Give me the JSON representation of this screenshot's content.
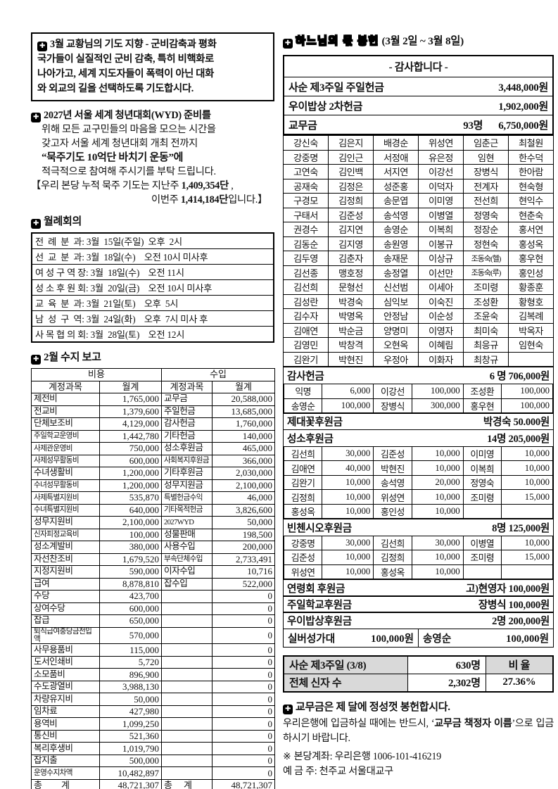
{
  "icons": {
    "section_marker": "✚",
    "reference_mark": "※"
  },
  "colors": {
    "text": "#111111",
    "border": "#000000",
    "stats_shade": "#d9d9d9",
    "background": "#ffffff"
  },
  "left": {
    "prayer_box": {
      "lines": [
        "3월 교황님의 기도 지향 - 군비감축과 평화",
        "국가들이 실질적인 군비 감축, 특히 비핵화로",
        "나아가고, 세계 지도자들이 폭력이 아닌 대화",
        "와 외교의 길을 선택하도록 기도합시다."
      ]
    },
    "wyd": {
      "title": "2027년 서울 세계 청년대회(WYD) 준비를",
      "lines": [
        "위해 모든 교구민들의 마음을 모으는 시간을",
        "갖고자 서울 세계 청년대회 개최 전까지"
      ],
      "slogan": "“묵주기도 10억단 바치기 운동”에",
      "closing": "적극적으로 참여해 주시기를 부탁 드립니다.",
      "rosary_line1": [
        {
          "t": "【우리 본당 누적 묵주 기도는 지난주 ",
          "b": false
        },
        {
          "t": "1,409,354단",
          "b": true
        },
        {
          "t": " ,",
          "b": false
        }
      ],
      "rosary_line2": [
        {
          "t": "이번주 ",
          "b": false
        },
        {
          "t": "1,414,184단",
          "b": true
        },
        {
          "t": "입니다.】",
          "b": false
        }
      ]
    },
    "meetings": {
      "title": "월례회의",
      "rows": [
        "전  례  분  과: 3월  15일(주일)  오후  2시",
        "선  교  분  과: 3월  18일(수)    오전 10시 미사후",
        "여 성 구 역 장: 3월  18일(수)    오전 11시",
        "성 소 후 원 회: 3월  20일(금)    오전 10시 미사후",
        "교  육  분  과: 3월  21일(토)    오후  5시",
        "남  성  구  역: 3월  24일(화)    오후  7시 미사 후",
        "사 목 협 의 회: 3월  28일(토)    오전 12시"
      ]
    },
    "finance": {
      "title": "2월 수지 보고",
      "expense_header": "비용",
      "income_header": "수입",
      "col_headers": [
        "계정과목",
        "월계",
        "계정과목",
        "월계"
      ],
      "rows": [
        [
          "제전비",
          "1,765,000",
          "교무금",
          "20,588,000"
        ],
        [
          "전교비",
          "1,379,600",
          "주일헌금",
          "13,685,000"
        ],
        [
          "단체보조비",
          "4,129,000",
          "감사헌금",
          "1,760,000"
        ],
        [
          "주일학교운영비",
          "1,442,780",
          "기타헌금",
          "140,000"
        ],
        [
          "사제관운영비",
          "750,000",
          "성소후원금",
          "465,000"
        ],
        [
          "사제성무활동비",
          "600,000",
          "사회복지후원금",
          "366,000"
        ],
        [
          "수녀생활비",
          "1,200,000",
          "기타후원금",
          "2,030,000"
        ],
        [
          "수녀성무활동비",
          "1,200,000",
          "성무지원금",
          "2,100,000"
        ],
        [
          "사제특별지원비",
          "535,870",
          "특별헌금수익",
          "46,000"
        ],
        [
          "수녀특별지원비",
          "640,000",
          "기타목적헌금",
          "3,826,600"
        ],
        [
          "성무지원비",
          "2,100,000",
          "2027WYD",
          "50,000"
        ],
        [
          "신자피정교육비",
          "100,000",
          "성물판매",
          "198,500"
        ],
        [
          "성소계발비",
          "380,000",
          "사용수입",
          "200,000"
        ],
        [
          "자선찬조비",
          "1,679,520",
          "부속단체수입",
          "2,733,491"
        ],
        [
          "지정지원비",
          "590,000",
          "이자수입",
          "10,716"
        ],
        [
          "급여",
          "8,878,810",
          "잡수입",
          "522,000"
        ],
        [
          "수당",
          "423,700",
          "",
          "0"
        ],
        [
          "상여수당",
          "600,000",
          "",
          "0"
        ],
        [
          "잡급",
          "650,000",
          "",
          "0"
        ],
        [
          "퇴직급여충당금전입액",
          "570,000",
          "",
          "0"
        ],
        [
          "사무용품비",
          "115,000",
          "",
          "0"
        ],
        [
          "도서인쇄비",
          "5,720",
          "",
          "0"
        ],
        [
          "소모품비",
          "896,900",
          "",
          "0"
        ],
        [
          "수도광열비",
          "3,988,130",
          "",
          "0"
        ],
        [
          "차량유지비",
          "50,000",
          "",
          "0"
        ],
        [
          "임차료",
          "427,980",
          "",
          "0"
        ],
        [
          "용역비",
          "1,099,250",
          "",
          "0"
        ],
        [
          "통신비",
          "521,360",
          "",
          "0"
        ],
        [
          "복리후생비",
          "1,019,790",
          "",
          "0"
        ],
        [
          "잡지출",
          "500,000",
          "",
          "0"
        ],
        [
          "운영수지차액",
          "10,482,897",
          "",
          "0"
        ]
      ],
      "total": [
        "총          계",
        "48,721,307",
        "총      계",
        "48,721,307"
      ]
    }
  },
  "right": {
    "title_outlined": "하느님의 몫 봉헌",
    "title_range": "(3월 2일 ~ 3월 8일)",
    "thanks": {
      "header": "- 감사합니다 -",
      "rows": [
        {
          "label": "사순 제3주일 주일헌금",
          "count": "",
          "amount": "3,448,000원"
        },
        {
          "label": "우이밥상 2차헌금",
          "count": "",
          "amount": "1,902,000원"
        },
        {
          "label": "교무금",
          "count": "93명",
          "amount": "6,750,000원"
        }
      ]
    },
    "names_grid": [
      [
        "강신숙",
        "김은지",
        "배경순",
        "위성연",
        "임춘근",
        "최철원"
      ],
      [
        "강중명",
        "김인근",
        "서정애",
        "유은정",
        "임현",
        "한수덕"
      ],
      [
        "고연숙",
        "김인백",
        "서지연",
        "이강선",
        "장병식",
        "한아람"
      ],
      [
        "공재숙",
        "김정은",
        "성준홍",
        "이덕자",
        "전계자",
        "현숙형"
      ],
      [
        "구경모",
        "김정희",
        "송문엽",
        "이미영",
        "전선희",
        "현익수"
      ],
      [
        "구태서",
        "김준성",
        "송석영",
        "이병열",
        "정영숙",
        "현춘숙"
      ],
      [
        "권경수",
        "김지연",
        "송영순",
        "이복희",
        "정장순",
        "홍서연"
      ],
      [
        "김동순",
        "김지영",
        "송원영",
        "이봉규",
        "정현숙",
        "홍성옥"
      ],
      [
        "김두영",
        "김춘자",
        "송재문",
        "이상규",
        "조동숙(헬)",
        "홍우현"
      ],
      [
        "김선종",
        "맹호정",
        "송정열",
        "이선만",
        "조동숙(루)",
        "홍인성"
      ],
      [
        "김선희",
        "문형선",
        "신선범",
        "이세아",
        "조미령",
        "황종훈"
      ],
      [
        "김성란",
        "박경숙",
        "심익보",
        "이숙진",
        "조성환",
        "황형호"
      ],
      [
        "김수자",
        "박명옥",
        "안정남",
        "이순성",
        "조윤숙",
        "김복례"
      ],
      [
        "김애연",
        "박순금",
        "양명미",
        "이영자",
        "최미숙",
        "박옥자"
      ],
      [
        "김영민",
        "박창격",
        "오현옥",
        "이혜림",
        "최응규",
        "임현숙"
      ],
      [
        "김완기",
        "박현진",
        "우정아",
        "이화자",
        "최창규",
        ""
      ]
    ],
    "sections": [
      {
        "label": "감사헌금",
        "summary": "6 명 706,000원",
        "donors": [
          [
            "익명",
            "6,000",
            "이강선",
            "100,000",
            "조성환",
            "100,000"
          ],
          [
            "송영순",
            "100,000",
            "장병식",
            "300,000",
            "홍우현",
            "100,000"
          ]
        ]
      },
      {
        "label": "제대꽃후원금",
        "summary": "박경숙 50.000원",
        "donors": []
      },
      {
        "label": "성소후원금",
        "summary": "14명 205,000원",
        "donors": [
          [
            "김선희",
            "30,000",
            "김준성",
            "10,000",
            "이미영",
            "10,000"
          ],
          [
            "김애연",
            "40,000",
            "박현진",
            "10,000",
            "이복희",
            "10,000"
          ],
          [
            "김완기",
            "10,000",
            "송석영",
            "20,000",
            "정영숙",
            "10,000"
          ],
          [
            "김정희",
            "10,000",
            "위성연",
            "10,000",
            "조미령",
            "15,000"
          ],
          [
            "홍성옥",
            "10,000",
            "홍인성",
            "10,000",
            "",
            ""
          ]
        ]
      },
      {
        "label": "빈첸시오후원금",
        "summary": "8명  125,000원",
        "donors": [
          [
            "강중명",
            "30,000",
            "김선희",
            "30,000",
            "이병열",
            "10,000"
          ],
          [
            "김준성",
            "10,000",
            "김정희",
            "10,000",
            "조미령",
            "15,000"
          ],
          [
            "위성연",
            "10,000",
            "홍성옥",
            "10,000",
            "",
            ""
          ]
        ]
      },
      {
        "label": "연령회 후원금",
        "summary": "고)현영자 100,000원",
        "donors": []
      },
      {
        "label": "주일학교후원금",
        "summary": "장병식 100,000원",
        "donors": []
      },
      {
        "label": "우이밥상후원금",
        "summary": "2명 200,000원",
        "donors": []
      }
    ],
    "silver_choir": {
      "left_label": "실버성가대",
      "left_amount": "100,000원",
      "right_label": "송영순",
      "right_amount": "100,000원"
    },
    "stats": {
      "rows": [
        [
          "사순 제3주일 (3/8)",
          "630명",
          "비  율"
        ],
        [
          "전체 신자 수",
          "2,302명",
          "27.36%"
        ]
      ]
    },
    "notes": {
      "heading": "교무금은 제 달에 정성껏 봉헌합시다.",
      "body": [
        {
          "t": "우리은행에 입금하실 때에는 반드시, ‘",
          "b": false
        },
        {
          "t": "교무금 책정자 이름",
          "b": true
        },
        {
          "t": "’으로 입금하시기 바랍니다.",
          "b": false
        }
      ],
      "account_line1": "본당계좌: 우리은행 1006-101-416219",
      "account_line2": "예 금 주: 천주교 서울대교구"
    }
  }
}
